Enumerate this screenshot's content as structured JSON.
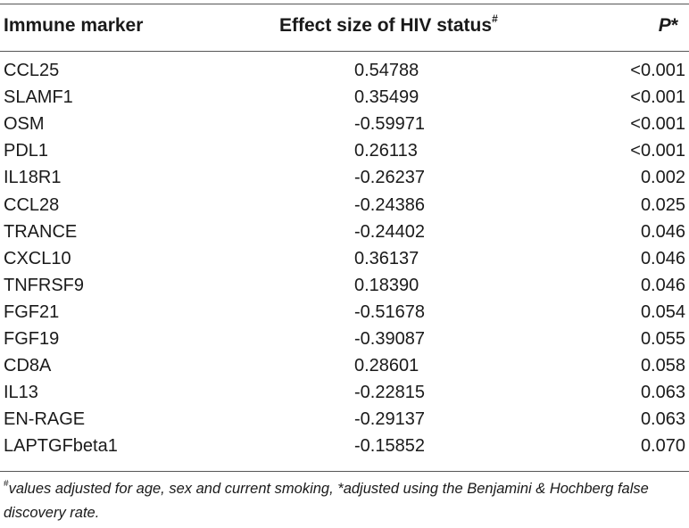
{
  "table": {
    "headers": {
      "marker": "Immune marker",
      "effect": "Effect size of HIV status",
      "effect_mark": "#",
      "p": "P",
      "p_mark": "*"
    },
    "rows": [
      {
        "marker": "CCL25",
        "effect": "0.54788",
        "p": "<0.001"
      },
      {
        "marker": "SLAMF1",
        "effect": "0.35499",
        "p": "<0.001"
      },
      {
        "marker": "OSM",
        "effect": "-0.59971",
        "p": "<0.001"
      },
      {
        "marker": "PDL1",
        "effect": "0.26113",
        "p": "<0.001"
      },
      {
        "marker": "IL18R1",
        "effect": "-0.26237",
        "p": "0.002"
      },
      {
        "marker": "CCL28",
        "effect": "-0.24386",
        "p": "0.025"
      },
      {
        "marker": "TRANCE",
        "effect": "-0.24402",
        "p": "0.046"
      },
      {
        "marker": "CXCL10",
        "effect": "0.36137",
        "p": "0.046"
      },
      {
        "marker": "TNFRSF9",
        "effect": "0.18390",
        "p": "0.046"
      },
      {
        "marker": "FGF21",
        "effect": "-0.51678",
        "p": "0.054"
      },
      {
        "marker": "FGF19",
        "effect": "-0.39087",
        "p": "0.055"
      },
      {
        "marker": "CD8A",
        "effect": "0.28601",
        "p": "0.058"
      },
      {
        "marker": "IL13",
        "effect": "-0.22815",
        "p": "0.063"
      },
      {
        "marker": "EN-RAGE",
        "effect": "-0.29137",
        "p": "0.063"
      },
      {
        "marker": "LAPTGFbeta1",
        "effect": "-0.15852",
        "p": "0.070"
      }
    ],
    "footnote_mark": "#",
    "footnote": "values adjusted for age, sex and current smoking, *adjusted using the Benjamini & Hochberg false discovery rate."
  }
}
